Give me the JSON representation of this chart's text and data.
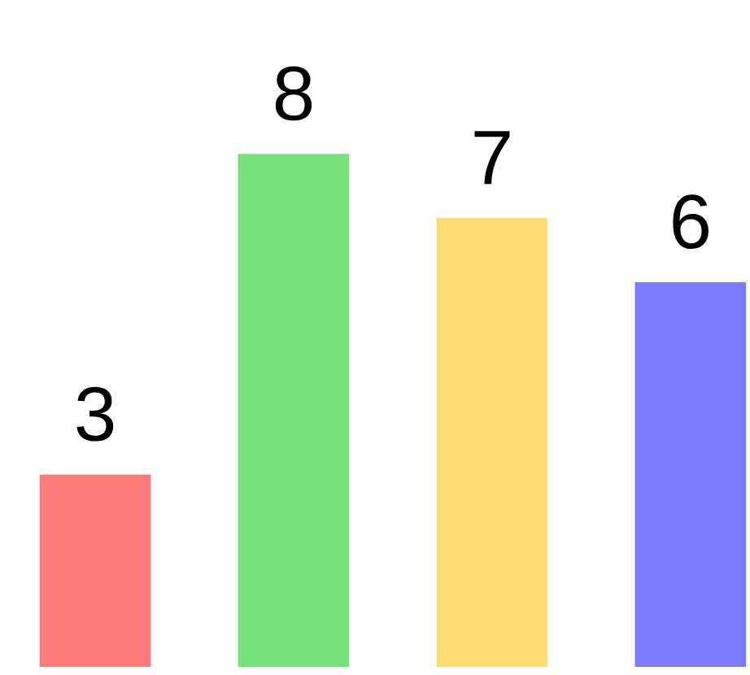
{
  "chart_data": {
    "type": "bar",
    "categories": [
      null,
      null,
      null,
      null
    ],
    "values": [
      3,
      8,
      7,
      6
    ],
    "colors": [
      "#ff7b7b",
      "#77e27a",
      "#ffdc74",
      "#7b7bff"
    ],
    "data_labels": true,
    "grid": false,
    "legend": false
  }
}
